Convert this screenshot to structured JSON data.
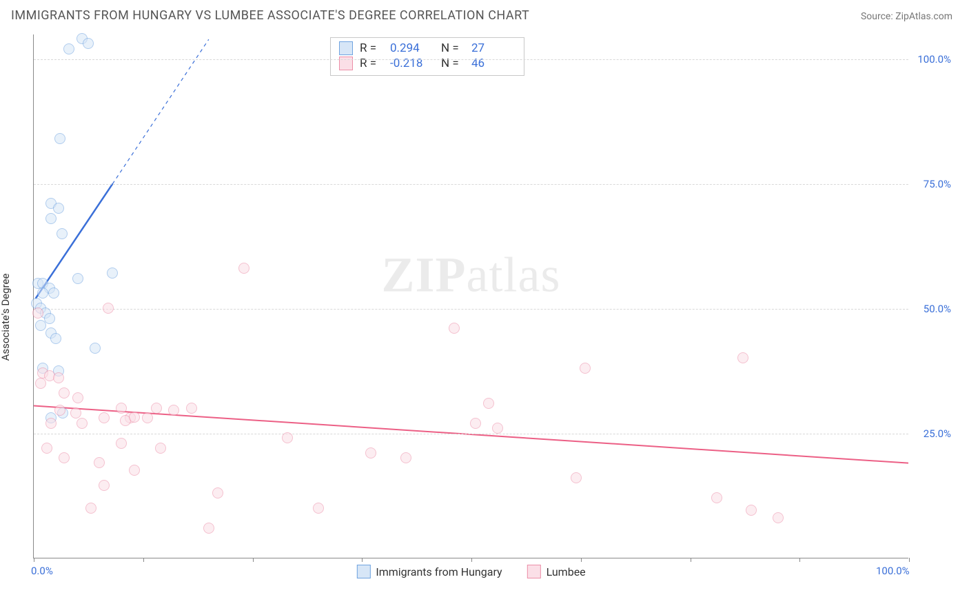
{
  "header": {
    "title": "IMMIGRANTS FROM HUNGARY VS LUMBEE ASSOCIATE'S DEGREE CORRELATION CHART",
    "source_prefix": "Source: ",
    "source_name": "ZipAtlas.com"
  },
  "watermark": {
    "zip": "ZIP",
    "atlas": "atlas"
  },
  "chart": {
    "type": "scatter",
    "ylabel": "Associate's Degree",
    "xlim": [
      0,
      100
    ],
    "ylim": [
      0,
      105
    ],
    "x_ticks": [
      0,
      12.5,
      25,
      37.5,
      50,
      62.5,
      75,
      87.5,
      100
    ],
    "x_tick_labels": {
      "0": "0.0%",
      "100": "100.0%"
    },
    "y_gridlines": [
      25,
      50,
      75,
      100
    ],
    "y_tick_labels": {
      "25": "25.0%",
      "50": "50.0%",
      "75": "75.0%",
      "100": "100.0%"
    },
    "background_color": "#ffffff",
    "grid_color": "#d8d8d8",
    "axis_color": "#888888",
    "tick_label_color": "#3a6fd8",
    "marker_radius": 8,
    "marker_stroke_width": 1.3,
    "series": [
      {
        "name": "Immigrants from Hungary",
        "fill": "#d7e6f7",
        "stroke": "#6fa3e0",
        "fill_opacity": 0.55,
        "r_value": "0.294",
        "n_value": "27",
        "trend": {
          "x1": 0.2,
          "y1": 52,
          "x2": 9,
          "y2": 75,
          "dash_x2": 20,
          "dash_y2": 104,
          "color": "#3a6fd8",
          "width": 2.5
        },
        "points": [
          [
            5.5,
            104
          ],
          [
            6.2,
            103
          ],
          [
            4.0,
            102
          ],
          [
            3.0,
            84
          ],
          [
            2.0,
            71
          ],
          [
            2.8,
            70
          ],
          [
            2.0,
            68
          ],
          [
            3.2,
            65
          ],
          [
            9.0,
            57
          ],
          [
            5.0,
            56
          ],
          [
            0.5,
            55
          ],
          [
            1.0,
            55
          ],
          [
            1.8,
            54
          ],
          [
            2.3,
            53
          ],
          [
            1.0,
            53
          ],
          [
            0.3,
            51
          ],
          [
            0.8,
            50
          ],
          [
            1.3,
            49
          ],
          [
            1.8,
            48
          ],
          [
            2.0,
            45
          ],
          [
            0.8,
            46.5
          ],
          [
            2.5,
            44
          ],
          [
            7.0,
            42
          ],
          [
            1.0,
            38
          ],
          [
            2.8,
            37.5
          ],
          [
            2.0,
            28
          ],
          [
            3.3,
            29
          ]
        ]
      },
      {
        "name": "Lumbee",
        "fill": "#fbdfe7",
        "stroke": "#ec8fa8",
        "fill_opacity": 0.55,
        "r_value": "-0.218",
        "n_value": "46",
        "trend": {
          "x1": 0,
          "y1": 30.5,
          "x2": 100,
          "y2": 19,
          "color": "#ec5f85",
          "width": 2
        },
        "points": [
          [
            24,
            58
          ],
          [
            8.5,
            50
          ],
          [
            0.5,
            49
          ],
          [
            48,
            46
          ],
          [
            81,
            40
          ],
          [
            63,
            38
          ],
          [
            1.0,
            37
          ],
          [
            1.8,
            36.5
          ],
          [
            2.8,
            36
          ],
          [
            0.8,
            35
          ],
          [
            3.5,
            33
          ],
          [
            5.0,
            32
          ],
          [
            52,
            31
          ],
          [
            10,
            30
          ],
          [
            14,
            30
          ],
          [
            16,
            29.5
          ],
          [
            18,
            30
          ],
          [
            3,
            29.5
          ],
          [
            4.8,
            29
          ],
          [
            8,
            28
          ],
          [
            11,
            28
          ],
          [
            13,
            28
          ],
          [
            10.5,
            27.5
          ],
          [
            11.5,
            28.2
          ],
          [
            2,
            27
          ],
          [
            5.5,
            27
          ],
          [
            50.5,
            27
          ],
          [
            53,
            26
          ],
          [
            29,
            24
          ],
          [
            10,
            23
          ],
          [
            1.5,
            22
          ],
          [
            14.5,
            22
          ],
          [
            38.5,
            21
          ],
          [
            42.5,
            20
          ],
          [
            3.5,
            20
          ],
          [
            7.5,
            19
          ],
          [
            11.5,
            17.5
          ],
          [
            62,
            16
          ],
          [
            8,
            14.5
          ],
          [
            21,
            13
          ],
          [
            78,
            12
          ],
          [
            6.5,
            10
          ],
          [
            32.5,
            10
          ],
          [
            82,
            9.5
          ],
          [
            20,
            6
          ],
          [
            85,
            8
          ]
        ]
      }
    ]
  },
  "legend_top": {
    "r_label": "R  =",
    "n_label": "N  ="
  }
}
